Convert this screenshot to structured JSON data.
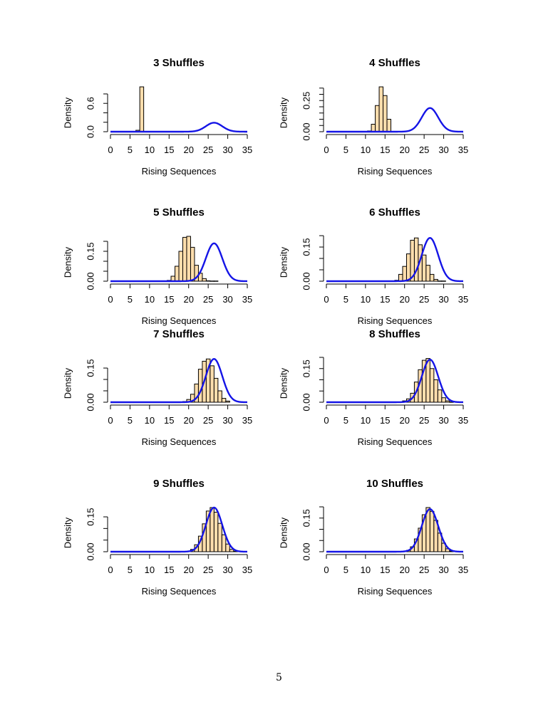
{
  "page": {
    "number": "5"
  },
  "style": {
    "bar_fill": "#FFDEAD",
    "bar_border": "#000000",
    "curve_color": "#1414E6"
  },
  "chart_data": [
    {
      "type": "bar",
      "title": "3  Shuffles",
      "xlabel": "Rising Sequences",
      "ylabel": "Density",
      "xlim": [
        0,
        35
      ],
      "xticks": [
        0,
        5,
        10,
        15,
        20,
        25,
        30,
        35
      ],
      "ylim": [
        0,
        0.95
      ],
      "yticks": [
        0.0,
        0.2,
        0.4,
        0.6,
        0.8
      ],
      "ytick_labels": [
        "0.0",
        "",
        "",
        "0.6",
        ""
      ],
      "bin_width": 1,
      "bars": {
        "x": [
          7,
          8
        ],
        "density": [
          0.03,
          0.95
        ]
      },
      "curve": {
        "type": "normal",
        "mean": 26.5,
        "sd": 2.1
      }
    },
    {
      "type": "bar",
      "title": "4  Shuffles",
      "xlabel": "Rising Sequences",
      "ylabel": "Density",
      "xlim": [
        0,
        35
      ],
      "xticks": [
        0,
        5,
        10,
        15,
        20,
        25,
        30,
        35
      ],
      "ylim": [
        0,
        0.36
      ],
      "yticks": [
        0.0,
        0.05,
        0.1,
        0.15,
        0.2,
        0.25,
        0.3,
        0.35
      ],
      "ytick_labels": [
        "0.00",
        "",
        "",
        "",
        "",
        "0.25",
        "",
        ""
      ],
      "bin_width": 1,
      "bars": {
        "x": [
          11,
          12,
          13,
          14,
          15,
          16
        ],
        "density": [
          0.006,
          0.06,
          0.21,
          0.36,
          0.29,
          0.1
        ]
      },
      "curve": {
        "type": "normal",
        "mean": 26.5,
        "sd": 2.1
      }
    },
    {
      "type": "bar",
      "title": "5  Shuffles",
      "xlabel": "Rising Sequences",
      "ylabel": "Density",
      "xlim": [
        0,
        35
      ],
      "xticks": [
        0,
        5,
        10,
        15,
        20,
        25,
        30,
        35
      ],
      "ylim": [
        0,
        0.225
      ],
      "yticks": [
        0.0,
        0.05,
        0.1,
        0.15,
        0.2
      ],
      "ytick_labels": [
        "0.00",
        "",
        "",
        "0.15",
        ""
      ],
      "bin_width": 1,
      "bars": {
        "x": [
          15,
          16,
          17,
          18,
          19,
          20,
          21,
          22,
          23,
          24,
          25,
          26,
          27
        ],
        "density": [
          0.004,
          0.025,
          0.075,
          0.15,
          0.22,
          0.225,
          0.17,
          0.08,
          0.04,
          0.013,
          0.002,
          0.001,
          0.001
        ]
      },
      "curve": {
        "type": "normal",
        "mean": 26.5,
        "sd": 2.1
      }
    },
    {
      "type": "bar",
      "title": "6  Shuffles",
      "xlabel": "Rising Sequences",
      "ylabel": "Density",
      "xlim": [
        0,
        35
      ],
      "xticks": [
        0,
        5,
        10,
        15,
        20,
        25,
        30,
        35
      ],
      "ylim": [
        0,
        0.197
      ],
      "yticks": [
        0.0,
        0.05,
        0.1,
        0.15,
        0.2
      ],
      "ytick_labels": [
        "0.00",
        "",
        "",
        "0.15",
        ""
      ],
      "bin_width": 1,
      "bars": {
        "x": [
          18,
          19,
          20,
          21,
          22,
          23,
          24,
          25,
          26,
          27,
          28,
          29,
          30
        ],
        "density": [
          0.004,
          0.03,
          0.065,
          0.12,
          0.18,
          0.19,
          0.16,
          0.115,
          0.07,
          0.03,
          0.008,
          0.001,
          0.001
        ]
      },
      "curve": {
        "type": "normal",
        "mean": 26.5,
        "sd": 2.1
      }
    },
    {
      "type": "bar",
      "title": "7  Shuffles",
      "xlabel": "Rising Sequences",
      "ylabel": "Density",
      "xlim": [
        0,
        35
      ],
      "xticks": [
        0,
        5,
        10,
        15,
        20,
        25,
        30,
        35
      ],
      "ylim": [
        0,
        0.197
      ],
      "yticks": [
        0.0,
        0.05,
        0.1,
        0.15
      ],
      "ytick_labels": [
        "0.00",
        "",
        "",
        "0.15"
      ],
      "bin_width": 1,
      "bars": {
        "x": [
          19,
          20,
          21,
          22,
          23,
          24,
          25,
          26,
          27,
          28,
          29,
          30
        ],
        "density": [
          0.003,
          0.012,
          0.035,
          0.08,
          0.145,
          0.18,
          0.19,
          0.16,
          0.105,
          0.05,
          0.017,
          0.005
        ]
      },
      "curve": {
        "type": "normal",
        "mean": 26.5,
        "sd": 2.1
      }
    },
    {
      "type": "bar",
      "title": "8  Shuffles",
      "xlabel": "Rising Sequences",
      "ylabel": "Density",
      "xlim": [
        0,
        35
      ],
      "xticks": [
        0,
        5,
        10,
        15,
        20,
        25,
        30,
        35
      ],
      "ylim": [
        0,
        0.2
      ],
      "yticks": [
        0.0,
        0.05,
        0.1,
        0.15,
        0.2
      ],
      "ytick_labels": [
        "0.00",
        "",
        "",
        "0.15",
        ""
      ],
      "bin_width": 1,
      "bars": {
        "x": [
          20,
          21,
          22,
          23,
          24,
          25,
          26,
          27,
          28,
          29,
          30,
          31,
          32
        ],
        "density": [
          0.006,
          0.015,
          0.04,
          0.09,
          0.145,
          0.187,
          0.195,
          0.15,
          0.1,
          0.055,
          0.02,
          0.006,
          0.001
        ]
      },
      "curve": {
        "type": "normal",
        "mean": 26.5,
        "sd": 2.1
      }
    },
    {
      "type": "bar",
      "title": "9  Shuffles",
      "xlabel": "Rising Sequences",
      "ylabel": "Density",
      "xlim": [
        0,
        35
      ],
      "xticks": [
        0,
        5,
        10,
        15,
        20,
        25,
        30,
        35
      ],
      "ylim": [
        0,
        0.193
      ],
      "yticks": [
        0.0,
        0.05,
        0.1,
        0.15
      ],
      "ytick_labels": [
        "0.00",
        "",
        "",
        "0.15"
      ],
      "bin_width": 1,
      "bars": {
        "x": [
          21,
          22,
          23,
          24,
          25,
          26,
          27,
          28,
          29,
          30,
          31,
          32
        ],
        "density": [
          0.01,
          0.03,
          0.067,
          0.12,
          0.175,
          0.19,
          0.17,
          0.122,
          0.073,
          0.033,
          0.01,
          0.002
        ]
      },
      "curve": {
        "type": "normal",
        "mean": 26.5,
        "sd": 2.1
      }
    },
    {
      "type": "bar",
      "title": "10  Shuffles",
      "xlabel": "Rising Sequences",
      "ylabel": "Density",
      "xlim": [
        0,
        35
      ],
      "xticks": [
        0,
        5,
        10,
        15,
        20,
        25,
        30,
        35
      ],
      "ylim": [
        0,
        0.2
      ],
      "yticks": [
        0.0,
        0.05,
        0.1,
        0.15,
        0.2
      ],
      "ytick_labels": [
        "0.00",
        "",
        "",
        "0.15",
        ""
      ],
      "bin_width": 1,
      "bars": {
        "x": [
          21,
          22,
          23,
          24,
          25,
          26,
          27,
          28,
          29,
          30,
          31,
          32
        ],
        "density": [
          0.006,
          0.022,
          0.057,
          0.105,
          0.165,
          0.197,
          0.18,
          0.14,
          0.083,
          0.038,
          0.013,
          0.003
        ]
      },
      "curve": {
        "type": "normal",
        "mean": 26.5,
        "sd": 2.1
      }
    }
  ]
}
